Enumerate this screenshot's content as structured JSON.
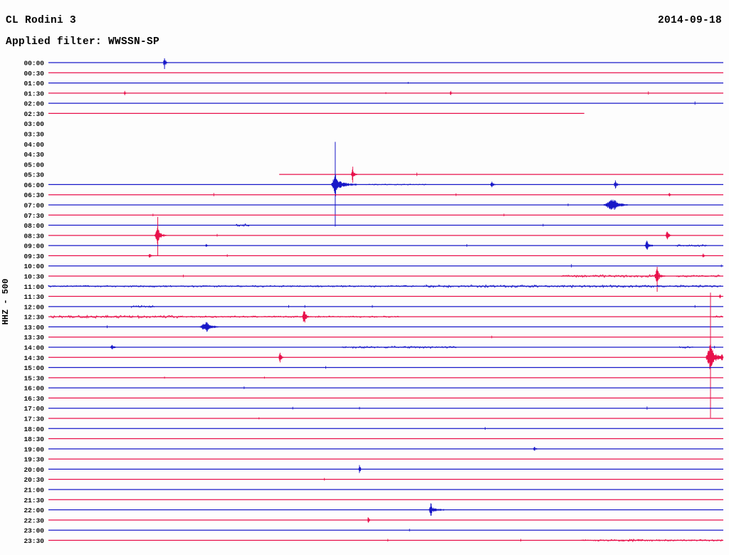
{
  "chart_data": {
    "type": "line",
    "subtype": "helicorder-seismogram",
    "station": "CL Rodini 3",
    "date": "2014-09-18",
    "filter_label": "Applied filter: WWSSN-SP",
    "channel_scale_label": "HHZ - 500",
    "minutes_per_row": 30,
    "time_range": [
      "00:00",
      "23:30"
    ],
    "grid": false,
    "colors": {
      "blue": "#1818c8",
      "red": "#e8114b"
    },
    "rows": [
      {
        "label": "00:00",
        "color": "blue",
        "segments": [
          [
            0,
            1
          ]
        ],
        "events": [
          {
            "t": 0.172,
            "amp": 6,
            "w": 2,
            "tail": 2,
            "vspan": [
              6,
              9
            ]
          }
        ]
      },
      {
        "label": "00:30",
        "color": "red",
        "segments": [
          [
            0,
            1
          ]
        ]
      },
      {
        "label": "01:00",
        "color": "blue",
        "segments": [
          [
            0,
            1
          ]
        ],
        "events": [
          {
            "t": 0.533,
            "amp": 1.5,
            "w": 1
          }
        ]
      },
      {
        "label": "01:30",
        "color": "red",
        "segments": [
          [
            0,
            1
          ]
        ],
        "events": [
          {
            "t": 0.113,
            "amp": 3,
            "w": 1.2,
            "tail": 1
          },
          {
            "t": 0.5,
            "amp": 1.5,
            "w": 1
          },
          {
            "t": 0.596,
            "amp": 3,
            "w": 1.2,
            "tail": 1
          },
          {
            "t": 0.889,
            "amp": 2.5,
            "w": 1
          }
        ]
      },
      {
        "label": "02:00",
        "color": "blue",
        "segments": [
          [
            0,
            1
          ]
        ],
        "events": [
          {
            "t": 0.958,
            "amp": 2.5,
            "w": 1
          }
        ]
      },
      {
        "label": "02:30",
        "color": "red",
        "segments": [
          [
            0,
            0.794
          ]
        ]
      },
      {
        "label": "03:00",
        "color": "blue",
        "segments": []
      },
      {
        "label": "03:30",
        "color": "red",
        "segments": []
      },
      {
        "label": "04:00",
        "color": "blue",
        "segments": []
      },
      {
        "label": "04:30",
        "color": "red",
        "segments": []
      },
      {
        "label": "05:00",
        "color": "blue",
        "segments": []
      },
      {
        "label": "05:30",
        "color": "red",
        "segments": [
          [
            0.342,
            1
          ]
        ],
        "events": [
          {
            "t": 0.451,
            "amp": 9,
            "w": 2,
            "tail": 4
          },
          {
            "t": 0.546,
            "amp": 2.5,
            "w": 1
          }
        ]
      },
      {
        "label": "06:00",
        "color": "blue",
        "segments": [
          [
            0,
            1
          ]
        ],
        "noise": [
          {
            "from": 0.47,
            "to": 0.56,
            "amp": 0.9
          }
        ],
        "events": [
          {
            "t": 0.425,
            "amp": 13,
            "w": 5,
            "tail": 26,
            "vspan": [
              60,
              59
            ]
          },
          {
            "t": 0.657,
            "amp": 4,
            "w": 2,
            "tail": 3
          },
          {
            "t": 0.84,
            "amp": 5.5,
            "w": 2,
            "tail": 4
          }
        ]
      },
      {
        "label": "06:30",
        "color": "red",
        "segments": [
          [
            0,
            1
          ]
        ],
        "events": [
          {
            "t": 0.245,
            "amp": 2.5,
            "w": 1
          },
          {
            "t": 0.604,
            "amp": 2,
            "w": 1
          },
          {
            "t": 0.92,
            "amp": 3,
            "w": 1.2,
            "tail": 1
          }
        ]
      },
      {
        "label": "07:00",
        "color": "blue",
        "segments": [
          [
            0,
            1
          ]
        ],
        "events": [
          {
            "t": 0.836,
            "amp": 7,
            "w": 12,
            "tail": 9
          },
          {
            "t": 0.77,
            "amp": 2,
            "w": 1
          }
        ]
      },
      {
        "label": "07:30",
        "color": "red",
        "segments": [
          [
            0,
            1
          ]
        ],
        "events": [
          {
            "t": 0.155,
            "amp": 2,
            "w": 1
          },
          {
            "t": 0.675,
            "amp": 2,
            "w": 1
          }
        ]
      },
      {
        "label": "08:00",
        "color": "blue",
        "segments": [
          [
            0,
            1
          ]
        ],
        "noise": [
          {
            "from": 0.278,
            "to": 0.298,
            "amp": 2.2
          }
        ],
        "events": [
          {
            "t": 0.733,
            "amp": 2,
            "w": 1
          }
        ]
      },
      {
        "label": "08:30",
        "color": "red",
        "segments": [
          [
            0,
            1
          ]
        ],
        "events": [
          {
            "t": 0.162,
            "amp": 10,
            "w": 4,
            "tail": 9,
            "vspan": [
              26,
              29
            ]
          },
          {
            "t": 0.25,
            "amp": 2,
            "w": 1
          },
          {
            "t": 0.917,
            "amp": 7,
            "w": 2,
            "tail": 4
          }
        ]
      },
      {
        "label": "09:00",
        "color": "blue",
        "segments": [
          [
            0,
            1
          ]
        ],
        "noise": [
          {
            "from": 0.93,
            "to": 0.977,
            "amp": 1.8
          }
        ],
        "events": [
          {
            "t": 0.234,
            "amp": 3,
            "w": 1.4,
            "tail": 1
          },
          {
            "t": 0.62,
            "amp": 2,
            "w": 1
          },
          {
            "t": 0.887,
            "amp": 7,
            "w": 3,
            "tail": 6
          }
        ]
      },
      {
        "label": "09:30",
        "color": "red",
        "segments": [
          [
            0,
            1
          ]
        ],
        "events": [
          {
            "t": 0.15,
            "amp": 3,
            "w": 2,
            "tail": 3
          },
          {
            "t": 0.265,
            "amp": 2,
            "w": 1
          },
          {
            "t": 0.97,
            "amp": 3,
            "w": 1.2,
            "tail": 1
          }
        ]
      },
      {
        "label": "10:00",
        "color": "blue",
        "segments": [
          [
            0,
            1
          ]
        ],
        "events": [
          {
            "t": 0.775,
            "amp": 2.5,
            "w": 1
          },
          {
            "t": 0.997,
            "amp": 2,
            "w": 1
          }
        ]
      },
      {
        "label": "10:30",
        "color": "red",
        "segments": [
          [
            0,
            1
          ]
        ],
        "noise": [
          {
            "from": 0.76,
            "to": 0.9,
            "amp": 2
          },
          {
            "from": 0.93,
            "to": 0.995,
            "amp": 1.6
          }
        ],
        "events": [
          {
            "t": 0.902,
            "amp": 9,
            "w": 3.5,
            "tail": 8,
            "vspan": [
              13,
              22
            ]
          },
          {
            "t": 0.2,
            "amp": 2,
            "w": 1
          }
        ]
      },
      {
        "label": "11:00",
        "color": "blue",
        "segments": [
          [
            0,
            1
          ]
        ],
        "noise": [
          {
            "from": 0,
            "to": 0.56,
            "amp": 1.3
          },
          {
            "from": 0.56,
            "to": 0.997,
            "amp": 2.1
          }
        ]
      },
      {
        "label": "11:30",
        "color": "red",
        "segments": [
          [
            0,
            1
          ]
        ],
        "events": [
          {
            "t": 0.995,
            "amp": 3,
            "w": 1.2,
            "tail": 1
          }
        ]
      },
      {
        "label": "12:00",
        "color": "blue",
        "segments": [
          [
            0,
            1
          ]
        ],
        "noise": [
          {
            "from": 0.123,
            "to": 0.157,
            "amp": 2.1
          }
        ],
        "events": [
          {
            "t": 0.356,
            "amp": 2,
            "w": 1
          },
          {
            "t": 0.38,
            "amp": 2,
            "w": 1
          },
          {
            "t": 0.48,
            "amp": 2,
            "w": 1
          },
          {
            "t": 0.958,
            "amp": 2,
            "w": 1
          }
        ]
      },
      {
        "label": "12:30",
        "color": "red",
        "segments": [
          [
            0,
            1
          ]
        ],
        "noise": [
          {
            "from": 0.004,
            "to": 0.2,
            "amp": 2.3
          },
          {
            "from": 0.2,
            "to": 0.52,
            "amp": 1.3
          },
          {
            "from": 0.985,
            "to": 1,
            "amp": 1.8
          }
        ],
        "events": [
          {
            "t": 0.379,
            "amp": 9,
            "w": 2.5,
            "tail": 5
          }
        ]
      },
      {
        "label": "13:00",
        "color": "blue",
        "segments": [
          [
            0,
            1
          ]
        ],
        "events": [
          {
            "t": 0.234,
            "amp": 6,
            "w": 9,
            "tail": 8
          },
          {
            "t": 0.087,
            "amp": 2,
            "w": 1
          }
        ]
      },
      {
        "label": "13:30",
        "color": "red",
        "segments": [
          [
            0,
            1
          ]
        ],
        "events": [
          {
            "t": 0.657,
            "amp": 2,
            "w": 1
          }
        ]
      },
      {
        "label": "14:00",
        "color": "blue",
        "segments": [
          [
            0,
            1
          ]
        ],
        "noise": [
          {
            "from": 0.435,
            "to": 0.605,
            "amp": 1.7
          },
          {
            "from": 0.935,
            "to": 0.957,
            "amp": 1.7
          }
        ],
        "events": [
          {
            "t": 0.094,
            "amp": 4,
            "w": 2,
            "tail": 4
          },
          {
            "t": 0.987,
            "amp": 2,
            "w": 1
          }
        ]
      },
      {
        "label": "14:30",
        "color": "red",
        "segments": [
          [
            0,
            1
          ]
        ],
        "events": [
          {
            "t": 0.343,
            "amp": 7,
            "w": 1.8,
            "tail": 3
          },
          {
            "t": 0.981,
            "amp": 16,
            "w": 6,
            "tail": 14,
            "vspan": [
              91,
              85
            ]
          },
          {
            "t": 0.998,
            "amp": 5,
            "w": 2,
            "tail": 2
          }
        ]
      },
      {
        "label": "15:00",
        "color": "blue",
        "segments": [
          [
            0,
            1
          ]
        ],
        "events": [
          {
            "t": 0.411,
            "amp": 2,
            "w": 1
          }
        ]
      },
      {
        "label": "15:30",
        "color": "red",
        "segments": [
          [
            0,
            1
          ]
        ],
        "events": [
          {
            "t": 0.172,
            "amp": 1.5,
            "w": 1
          },
          {
            "t": 0.32,
            "amp": 1.5,
            "w": 1
          }
        ]
      },
      {
        "label": "16:00",
        "color": "blue",
        "segments": [
          [
            0,
            1
          ]
        ],
        "events": [
          {
            "t": 0.29,
            "amp": 2,
            "w": 1
          }
        ]
      },
      {
        "label": "16:30",
        "color": "red",
        "segments": [
          [
            0,
            1
          ]
        ]
      },
      {
        "label": "17:00",
        "color": "blue",
        "segments": [
          [
            0,
            1
          ]
        ],
        "events": [
          {
            "t": 0.362,
            "amp": 2,
            "w": 1
          },
          {
            "t": 0.461,
            "amp": 2,
            "w": 1
          },
          {
            "t": 0.887,
            "amp": 2.5,
            "w": 1
          }
        ]
      },
      {
        "label": "17:30",
        "color": "red",
        "segments": [
          [
            0,
            1
          ]
        ],
        "events": [
          {
            "t": 0.312,
            "amp": 1.5,
            "w": 1
          }
        ]
      },
      {
        "label": "18:00",
        "color": "blue",
        "segments": [
          [
            0,
            1
          ]
        ],
        "events": [
          {
            "t": 0.647,
            "amp": 2,
            "w": 1
          }
        ]
      },
      {
        "label": "18:30",
        "color": "red",
        "segments": [
          [
            0,
            1
          ]
        ]
      },
      {
        "label": "19:00",
        "color": "blue",
        "segments": [
          [
            0,
            1
          ]
        ],
        "events": [
          {
            "t": 0.72,
            "amp": 4,
            "w": 1.5,
            "tail": 2
          }
        ]
      },
      {
        "label": "19:30",
        "color": "red",
        "segments": [
          [
            0,
            1
          ]
        ]
      },
      {
        "label": "20:00",
        "color": "blue",
        "segments": [
          [
            0,
            1
          ]
        ],
        "events": [
          {
            "t": 0.461,
            "amp": 5,
            "w": 1.5,
            "tail": 2
          }
        ]
      },
      {
        "label": "20:30",
        "color": "red",
        "segments": [
          [
            0,
            1
          ]
        ],
        "events": [
          {
            "t": 0.409,
            "amp": 2,
            "w": 1
          }
        ]
      },
      {
        "label": "21:00",
        "color": "blue",
        "segments": [
          [
            0,
            1
          ]
        ]
      },
      {
        "label": "21:30",
        "color": "red",
        "segments": [
          [
            0,
            1
          ]
        ]
      },
      {
        "label": "22:00",
        "color": "blue",
        "segments": [
          [
            0,
            1
          ]
        ],
        "events": [
          {
            "t": 0.567,
            "amp": 9,
            "w": 2.5,
            "tail": 16
          }
        ]
      },
      {
        "label": "22:30",
        "color": "red",
        "segments": [
          [
            0,
            1
          ]
        ],
        "events": [
          {
            "t": 0.474,
            "amp": 5,
            "w": 1.2,
            "tail": 1
          }
        ]
      },
      {
        "label": "23:00",
        "color": "blue",
        "segments": [
          [
            0,
            1
          ]
        ],
        "events": [
          {
            "t": 0.535,
            "amp": 2,
            "w": 1
          }
        ]
      },
      {
        "label": "23:30",
        "color": "red",
        "segments": [
          [
            0,
            1
          ]
        ],
        "noise": [
          {
            "from": 0.79,
            "to": 1,
            "amp": 1.5
          },
          {
            "from": 0.845,
            "to": 0.882,
            "amp": 2
          }
        ],
        "events": [
          {
            "t": 0.503,
            "amp": 2,
            "w": 1
          },
          {
            "t": 0.7,
            "amp": 2,
            "w": 1
          }
        ]
      }
    ]
  }
}
